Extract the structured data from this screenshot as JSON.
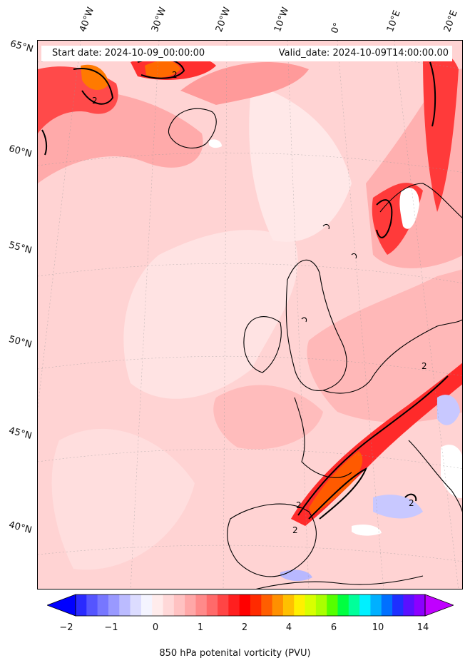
{
  "header": {
    "start_date": "Start date: 2024-10-09_00:00:00",
    "valid_date": "Valid_date: 2024-10-09T14:00:00.00"
  },
  "longitude_labels": [
    "40°W",
    "30°W",
    "20°W",
    "10°W",
    "0°",
    "10°E",
    "20°E"
  ],
  "latitude_labels": [
    "65°N",
    "60°N",
    "55°N",
    "50°N",
    "45°N",
    "40°N"
  ],
  "contour_label": "2",
  "colorbar": {
    "title": "850 hPa potenital vorticity (PVU)",
    "tick_labels": [
      "−2",
      "−1",
      "0",
      "1",
      "2",
      "4",
      "6",
      "10",
      "14"
    ],
    "colors": [
      "#0000ff",
      "#2a2aff",
      "#5555ff",
      "#7777ff",
      "#9999ff",
      "#bbbbff",
      "#dcdcff",
      "#f4f4ff",
      "#ffecec",
      "#ffd8d8",
      "#ffc2c2",
      "#ffa8a8",
      "#ff8a8a",
      "#ff6a6a",
      "#ff4545",
      "#ff1f1f",
      "#ff0000",
      "#ff2a00",
      "#ff5e00",
      "#ff9000",
      "#ffc000",
      "#fff000",
      "#d8ff00",
      "#aaff00",
      "#55ff00",
      "#00ff40",
      "#00ff9a",
      "#00f0ff",
      "#00b0ff",
      "#0070ff",
      "#1e30ff",
      "#5a10ff",
      "#8c00ff",
      "#c000ff"
    ]
  },
  "style": {
    "low_fill": "#ffd3d3",
    "mid_fill": "#ffaaaa",
    "high_fill": "#ff3b3b",
    "peak_fill": "#ff5a00",
    "negative_fill": "#c8c8ff",
    "land_line": "#000000"
  }
}
